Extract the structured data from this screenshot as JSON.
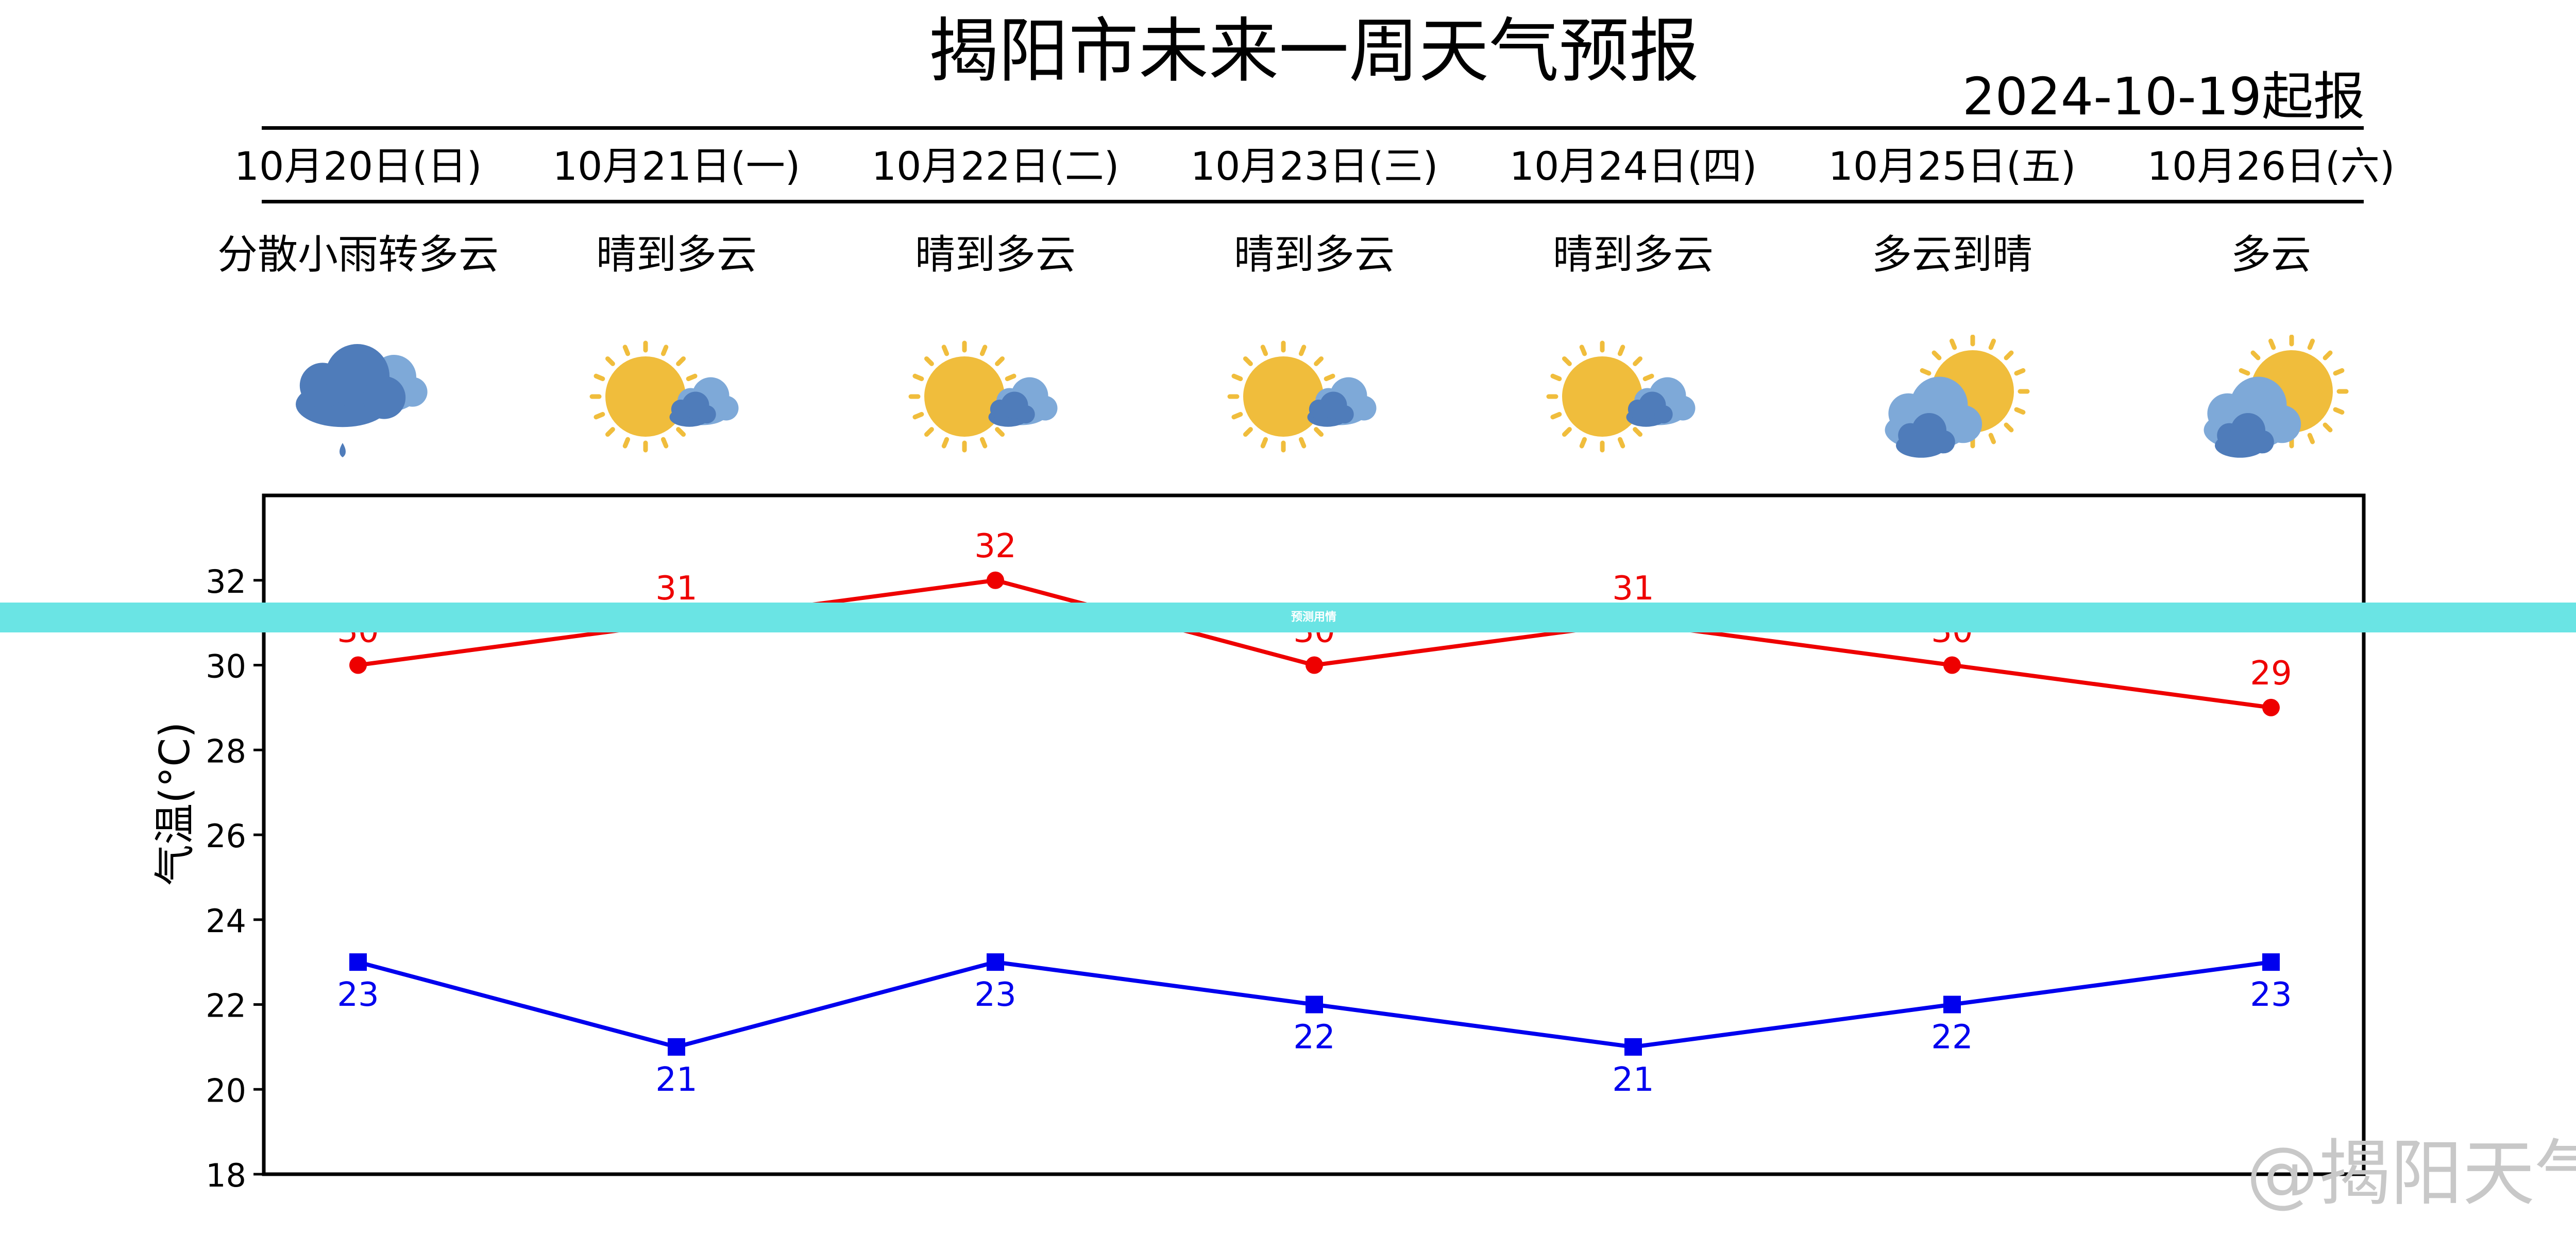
{
  "title": "揭阳市未来一周天气预报",
  "issued": "2024-10-19起报",
  "days": [
    {
      "date": "10月20日(日)",
      "weather": "分散小雨转多云",
      "icon": "rain-cloud-icon"
    },
    {
      "date": "10月21日(一)",
      "weather": "晴到多云",
      "icon": "sun-cloud-icon"
    },
    {
      "date": "10月22日(二)",
      "weather": "晴到多云",
      "icon": "sun-cloud-icon"
    },
    {
      "date": "10月23日(三)",
      "weather": "晴到多云",
      "icon": "sun-cloud-icon"
    },
    {
      "date": "10月24日(四)",
      "weather": "晴到多云",
      "icon": "sun-cloud-icon"
    },
    {
      "date": "10月25日(五)",
      "weather": "多云到晴",
      "icon": "cloud-sun-icon"
    },
    {
      "date": "10月26日(六)",
      "weather": "多云",
      "icon": "cloud-sun-icon"
    }
  ],
  "colors": {
    "high": "#ee0000",
    "low": "#0000ee",
    "sun": "#f0bd3c",
    "cloud_dark": "#4f7cba",
    "cloud_light": "#7ea9d8",
    "banner": "#6ae4e4"
  },
  "banner_text": "预测用情",
  "watermark": "@揭阳天气",
  "chart_data": {
    "type": "line",
    "categories": [
      "10月20日(日)",
      "10月21日(一)",
      "10月22日(二)",
      "10月23日(三)",
      "10月24日(四)",
      "10月25日(五)",
      "10月26日(六)"
    ],
    "series": [
      {
        "values": [
          30,
          31,
          32,
          30,
          31,
          30,
          29
        ],
        "marker": "circle",
        "color": "#ee0000"
      },
      {
        "values": [
          23,
          21,
          23,
          22,
          21,
          22,
          23
        ],
        "marker": "square",
        "color": "#0000ee"
      }
    ],
    "ylabel": "气温(°C)",
    "ylim": [
      18,
      34
    ],
    "yticks": [
      18,
      20,
      22,
      24,
      26,
      28,
      30,
      32
    ],
    "grid": false,
    "legend": "none"
  }
}
